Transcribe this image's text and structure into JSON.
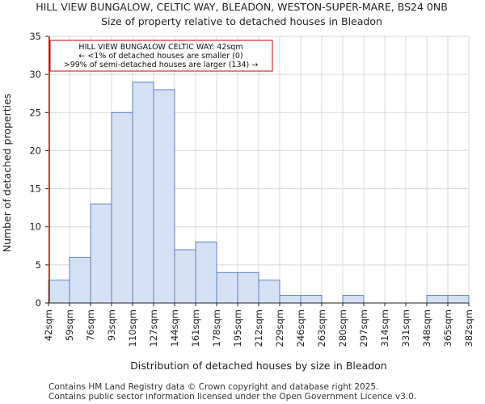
{
  "chart_data": {
    "type": "bar",
    "title": "HILL VIEW BUNGALOW, CELTIC WAY, BLEADON, WESTON-SUPER-MARE, BS24 0NB",
    "subtitle": "Size of property relative to detached houses in Bleadon",
    "xlabel": "Distribution of detached houses by size in Bleadon",
    "ylabel": "Number of detached properties",
    "ylim": [
      0,
      35
    ],
    "yticks": [
      0,
      5,
      10,
      15,
      20,
      25,
      30,
      35
    ],
    "grid": true,
    "bin_edges": [
      "42sqm",
      "59sqm",
      "76sqm",
      "93sqm",
      "110sqm",
      "127sqm",
      "144sqm",
      "161sqm",
      "178sqm",
      "195sqm",
      "212sqm",
      "229sqm",
      "246sqm",
      "263sqm",
      "280sqm",
      "297sqm",
      "314sqm",
      "331sqm",
      "348sqm",
      "365sqm",
      "382sqm"
    ],
    "values": [
      3,
      6,
      13,
      25,
      29,
      28,
      7,
      8,
      4,
      4,
      3,
      1,
      1,
      0,
      1,
      0,
      0,
      0,
      1,
      1
    ],
    "bar_color": "#d6e0f5",
    "bar_edge_color": "#5b7fc0",
    "marker": {
      "value_index": 0,
      "color": "#cc0000",
      "annotation": [
        "HILL VIEW BUNGALOW CELTIC WAY: 42sqm",
        "← <1% of detached houses are smaller (0)",
        ">99% of semi-detached houses are larger (134) →"
      ]
    }
  },
  "footer": {
    "line1": "Contains HM Land Registry data © Crown copyright and database right 2025.",
    "line2": "Contains public sector information licensed under the Open Government Licence v3.0."
  }
}
